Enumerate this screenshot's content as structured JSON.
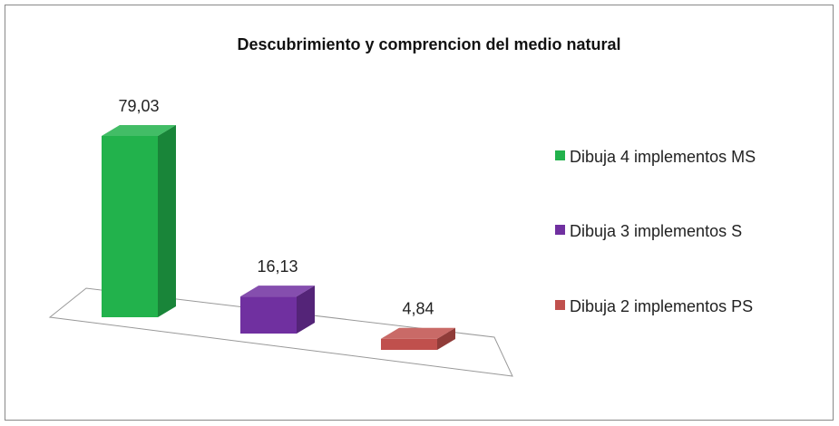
{
  "chart_data": {
    "type": "bar",
    "title": "Descubrimiento y comprencion del medio natural",
    "series": [
      {
        "name": "Dibuja 4 implementos MS",
        "color": "#22b24c",
        "values": [
          79.03
        ],
        "value_labels": [
          "79,03"
        ]
      },
      {
        "name": "Dibuja 3 implementos S",
        "color": "#7030a0",
        "values": [
          16.13
        ],
        "value_labels": [
          "16,13"
        ]
      },
      {
        "name": "Dibuja 2 implementos PS",
        "color": "#c0504d",
        "values": [
          4.84
        ],
        "value_labels": [
          "4,84"
        ]
      }
    ]
  }
}
